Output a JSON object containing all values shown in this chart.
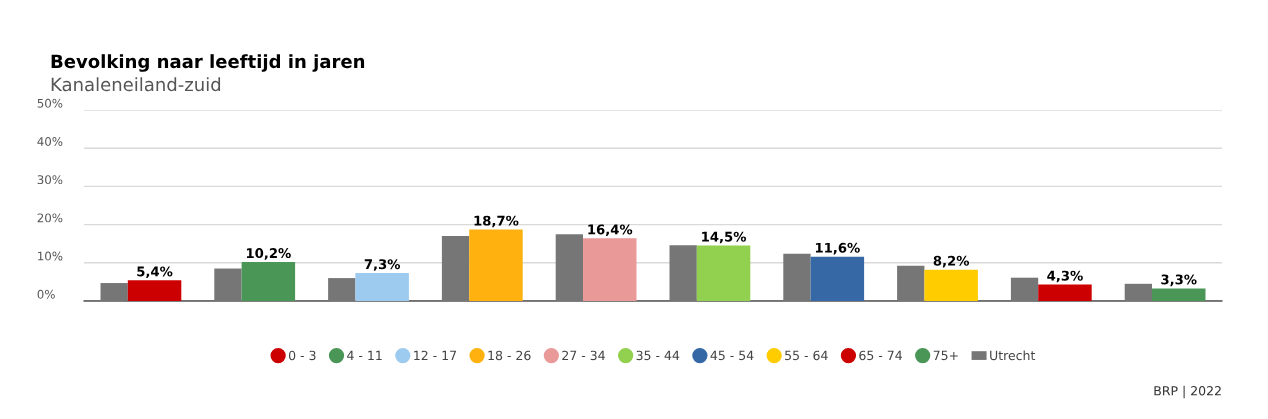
{
  "chart_data": {
    "type": "bar",
    "title": "Bevolking naar leeftijd in jaren",
    "subtitle": "Kanaleneiland-zuid",
    "categories": [
      null,
      null,
      null,
      null,
      null,
      null,
      null,
      null,
      null,
      null
    ],
    "series": [
      {
        "name": "0 - 3",
        "color": "#cc0000",
        "values": [
          5.4,
          null,
          null,
          null,
          null,
          null,
          null,
          null,
          null,
          null
        ],
        "value_labels": [
          "5,4%",
          null,
          null,
          null,
          null,
          null,
          null,
          null,
          null,
          null
        ]
      },
      {
        "name": "4 - 11",
        "color": "#4a9657",
        "values": [
          null,
          10.2,
          null,
          null,
          null,
          null,
          null,
          null,
          null,
          null
        ],
        "value_labels": [
          null,
          "10,2%",
          null,
          null,
          null,
          null,
          null,
          null,
          null,
          null
        ]
      },
      {
        "name": "12 - 17",
        "color": "#9dcbf0",
        "values": [
          null,
          null,
          7.3,
          null,
          null,
          null,
          null,
          null,
          null,
          null
        ],
        "value_labels": [
          null,
          null,
          "7,3%",
          null,
          null,
          null,
          null,
          null,
          null,
          null
        ]
      },
      {
        "name": "18 - 26",
        "color": "#ffb20f",
        "values": [
          null,
          null,
          null,
          18.7,
          null,
          null,
          null,
          null,
          null,
          null
        ],
        "value_labels": [
          null,
          null,
          null,
          "18,7%",
          null,
          null,
          null,
          null,
          null,
          null
        ]
      },
      {
        "name": "27 - 34",
        "color": "#ea9999",
        "values": [
          null,
          null,
          null,
          null,
          16.4,
          null,
          null,
          null,
          null,
          null
        ],
        "value_labels": [
          null,
          null,
          null,
          null,
          "16,4%",
          null,
          null,
          null,
          null,
          null
        ]
      },
      {
        "name": "35 - 44",
        "color": "#92d050",
        "values": [
          null,
          null,
          null,
          null,
          null,
          14.5,
          null,
          null,
          null,
          null
        ],
        "value_labels": [
          null,
          null,
          null,
          null,
          null,
          "14,5%",
          null,
          null,
          null,
          null
        ]
      },
      {
        "name": "45 - 54",
        "color": "#3768a6",
        "values": [
          null,
          null,
          null,
          null,
          null,
          null,
          11.6,
          null,
          null,
          null
        ],
        "value_labels": [
          null,
          null,
          null,
          null,
          null,
          null,
          "11,6%",
          null,
          null,
          null
        ]
      },
      {
        "name": "55 - 64",
        "color": "#ffcc00",
        "values": [
          null,
          null,
          null,
          null,
          null,
          null,
          null,
          8.2,
          null,
          null
        ],
        "value_labels": [
          null,
          null,
          null,
          null,
          null,
          null,
          null,
          "8,2%",
          null,
          null
        ]
      },
      {
        "name": "65 - 74",
        "color": "#cc0000",
        "values": [
          null,
          null,
          null,
          null,
          null,
          null,
          null,
          null,
          4.3,
          null
        ],
        "value_labels": [
          null,
          null,
          null,
          null,
          null,
          null,
          null,
          null,
          "4,3%",
          null
        ]
      },
      {
        "name": "75+",
        "color": "#4a9657",
        "values": [
          null,
          null,
          null,
          null,
          null,
          null,
          null,
          null,
          null,
          3.3
        ],
        "value_labels": [
          null,
          null,
          null,
          null,
          null,
          null,
          null,
          null,
          null,
          "3,3%"
        ]
      },
      {
        "name": "Utrecht",
        "color": "#767676",
        "values": [
          4.7,
          8.5,
          6.0,
          17.0,
          17.5,
          14.6,
          12.4,
          9.2,
          6.1,
          4.5
        ]
      }
    ],
    "ylim": [
      0,
      50
    ],
    "yticks": [
      {
        "value": 0,
        "label": "0%"
      },
      {
        "value": 10,
        "label": "10%"
      },
      {
        "value": 20,
        "label": "20%"
      },
      {
        "value": 30,
        "label": "30%"
      },
      {
        "value": 40,
        "label": "40%"
      },
      {
        "value": 50,
        "label": "50%"
      }
    ],
    "grid": "y",
    "legend": "bottom",
    "tick_labels": "y",
    "annotations": [
      "BRP | 2022"
    ]
  }
}
